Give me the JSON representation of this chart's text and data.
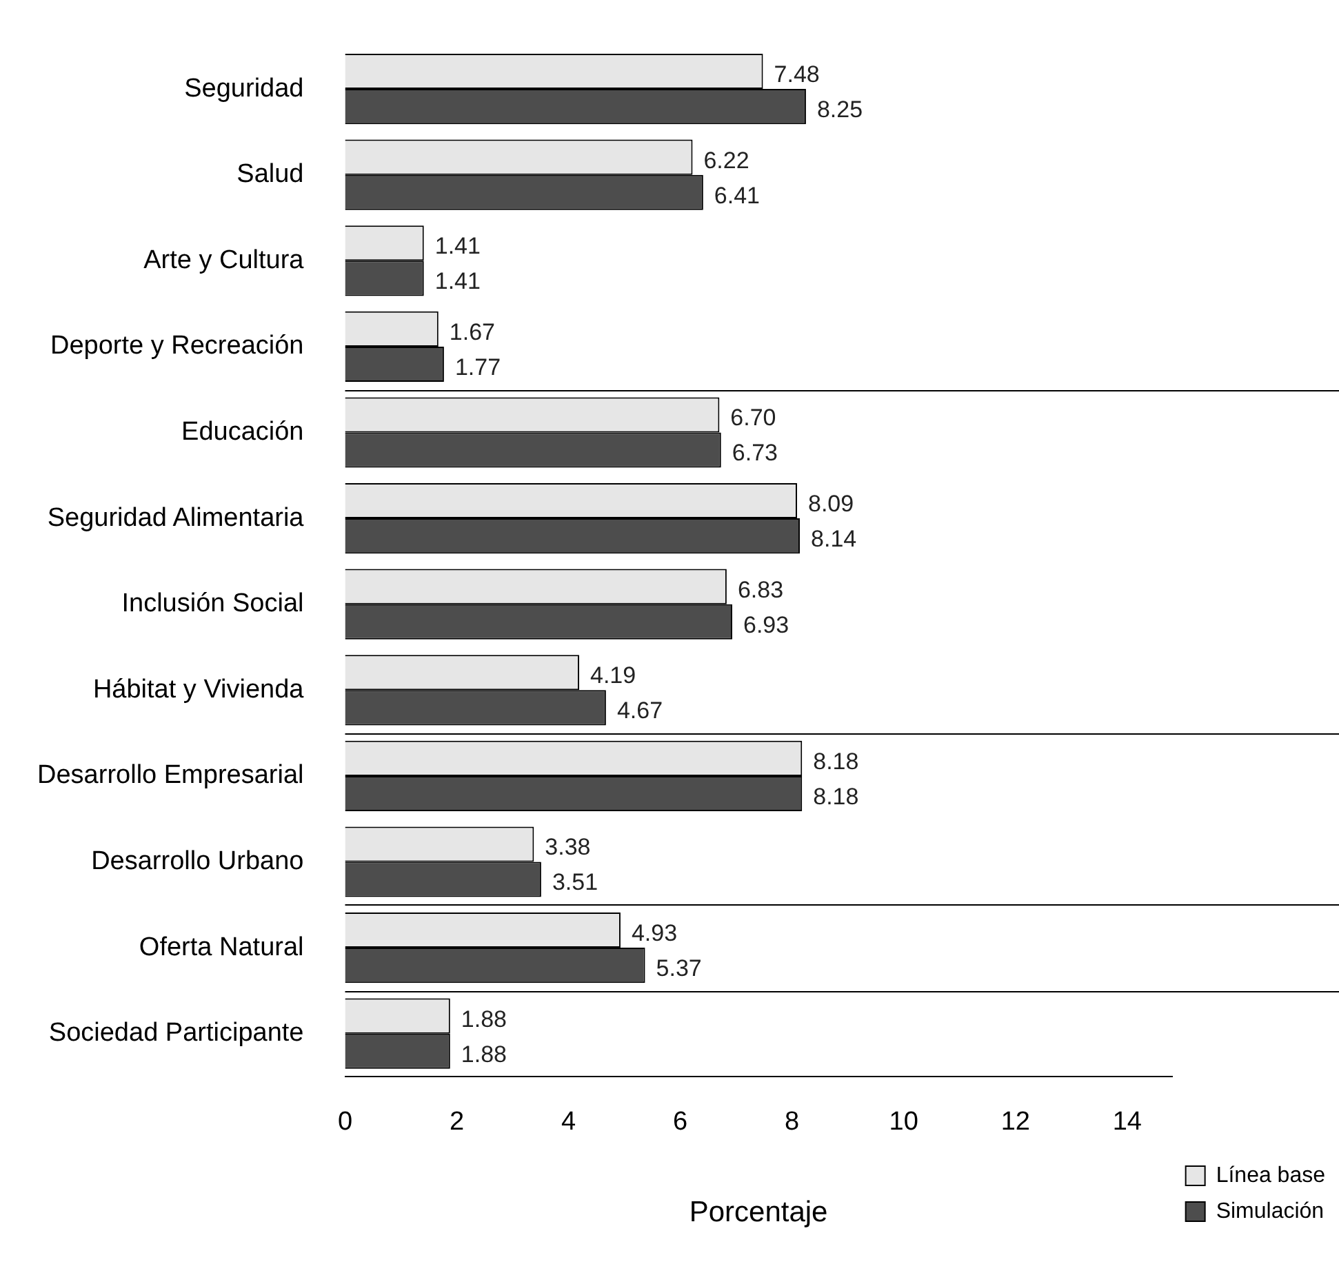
{
  "chart_data": {
    "type": "bar",
    "orientation": "horizontal",
    "xlabel": "Porcentaje",
    "categories": [
      "Seguridad",
      "Salud",
      "Arte y Cultura",
      "Deporte y Recreación",
      "Educación",
      "Seguridad Alimentaria",
      "Inclusión Social",
      "Hábitat y Vivienda",
      "Desarrollo Empresarial",
      "Desarrollo Urbano",
      "Oferta Natural",
      "Sociedad Participante"
    ],
    "series": [
      {
        "name": "Línea base",
        "color": "#e6e6e6",
        "values": [
          7.48,
          6.22,
          1.41,
          1.67,
          6.7,
          8.09,
          6.83,
          4.19,
          8.18,
          3.38,
          4.93,
          1.88
        ],
        "value_labels": [
          "7.48",
          "6.22",
          "1.41",
          "1.67",
          "6.70",
          "8.09",
          "6.83",
          "4.19",
          "8.18",
          "3.38",
          "4.93",
          "1.88"
        ]
      },
      {
        "name": "Simulación",
        "color": "#4d4d4d",
        "values": [
          8.25,
          6.41,
          1.41,
          1.77,
          6.73,
          8.14,
          6.93,
          4.67,
          8.18,
          3.51,
          5.37,
          1.88
        ],
        "value_labels": [
          "8.25",
          "6.41",
          "1.41",
          "1.77",
          "6.73",
          "8.14",
          "6.93",
          "4.67",
          "8.18",
          "3.51",
          "5.37",
          "1.88"
        ]
      }
    ],
    "xlim": [
      0,
      14.8
    ],
    "xticks": [
      0,
      2,
      4,
      6,
      8,
      10,
      12,
      14
    ],
    "grid": false,
    "legend": "bottom right"
  }
}
